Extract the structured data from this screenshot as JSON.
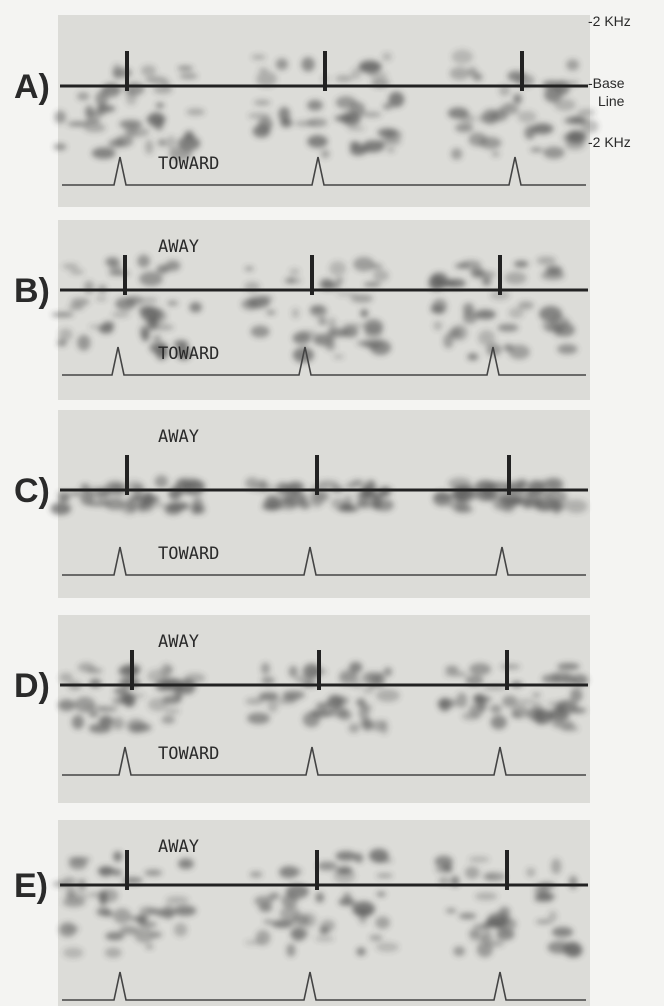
{
  "scale_labels": {
    "top": "-2 KHz",
    "baseline": [
      "-Base",
      "Line"
    ],
    "bottom": "-2 KHz"
  },
  "panels": [
    {
      "label": "A)",
      "toward": "TOWARD"
    },
    {
      "label": "B)",
      "away": "AWAY",
      "toward": "TOWARD"
    },
    {
      "label": "C)",
      "away": "AWAY",
      "toward": "TOWARD"
    },
    {
      "label": "D)",
      "away": "AWAY",
      "toward": "TOWARD"
    },
    {
      "label": "E)",
      "away": "AWAY"
    }
  ]
}
